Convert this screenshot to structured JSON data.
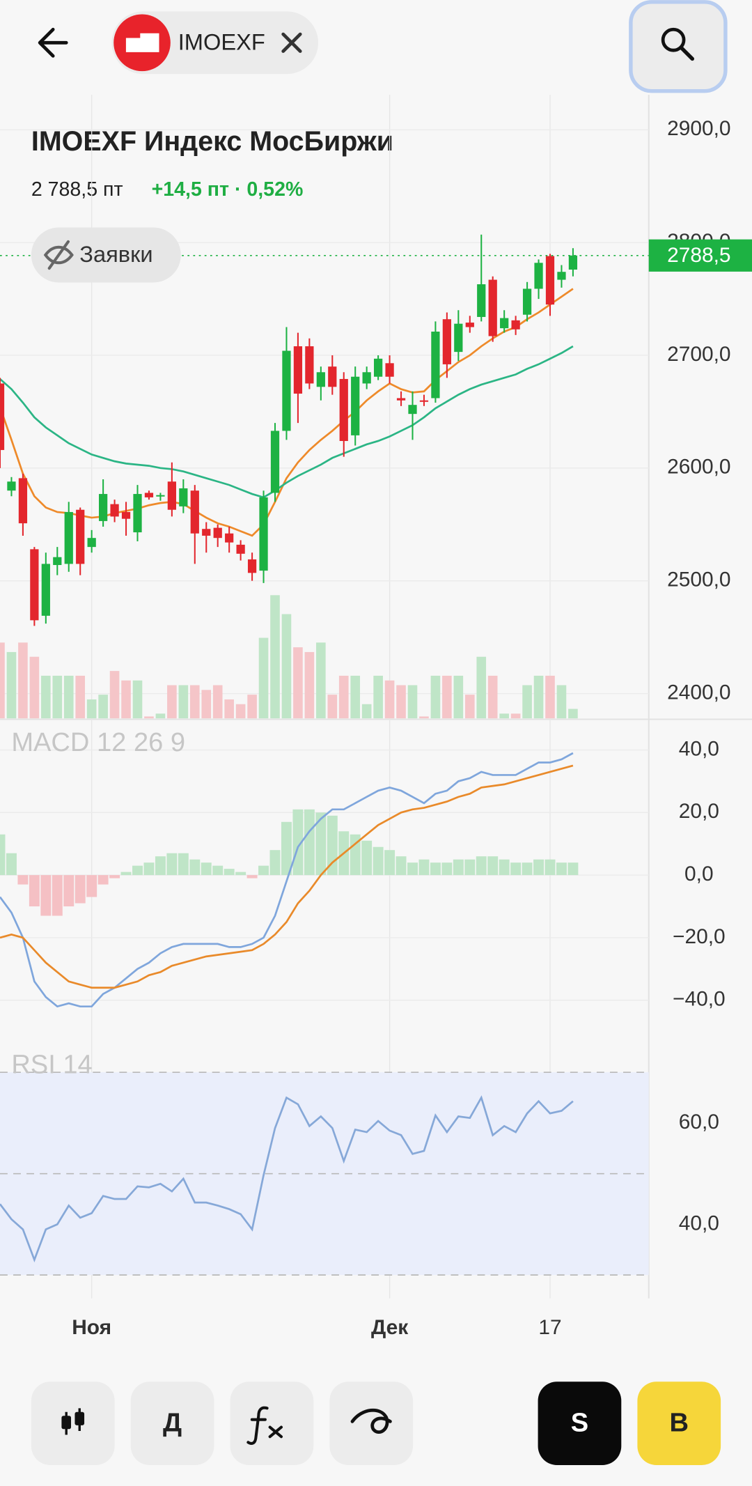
{
  "header": {
    "ticker": "IMOEXF"
  },
  "quote": {
    "title": "IMOEXF Индекс МосБиржи",
    "price": "2 788,5 пт",
    "change": "+14,5 пт · 0,52%"
  },
  "orders_toggle": "Заявки",
  "toolbar": {
    "period": "Д",
    "sell": "S",
    "buy": "B"
  },
  "chart_data": [
    {
      "type": "candlestick",
      "categories": [
        null,
        null,
        null,
        null,
        null,
        null,
        null,
        null,
        "Ноя",
        null,
        null,
        null,
        null,
        null,
        null,
        null,
        null,
        null,
        null,
        null,
        null,
        null,
        null,
        null,
        null,
        null,
        null,
        null,
        null,
        null,
        null,
        null,
        null,
        null,
        "Дек",
        null,
        null,
        null,
        null,
        null,
        null,
        null,
        null,
        null,
        null,
        null,
        null,
        null,
        "17",
        null,
        null
      ],
      "open": [
        2675,
        2580,
        2591,
        2528,
        2469,
        2514,
        2515,
        2563,
        2530,
        2553,
        2568,
        2561,
        2543,
        2578,
        2575,
        2588,
        2566,
        2580,
        2546,
        2547,
        2542,
        2532,
        2519,
        2509,
        2578,
        2633,
        2708,
        2708,
        2672,
        2690,
        2679,
        2629,
        2675,
        2681,
        2693,
        2662,
        2648,
        2660,
        2662,
        2732,
        2703,
        2729,
        2734,
        2767,
        2724,
        2731,
        2736,
        2759,
        2788,
        2767,
        2776
      ],
      "high": [
        2680,
        2592,
        2595,
        2530,
        2525,
        2530,
        2570,
        2565,
        2545,
        2590,
        2572,
        2570,
        2585,
        2580,
        2578,
        2605,
        2590,
        2585,
        2552,
        2550,
        2548,
        2536,
        2525,
        2580,
        2640,
        2725,
        2720,
        2715,
        2690,
        2700,
        2685,
        2690,
        2690,
        2700,
        2700,
        2668,
        2668,
        2665,
        2730,
        2738,
        2740,
        2735,
        2807,
        2770,
        2740,
        2735,
        2765,
        2785,
        2790,
        2780,
        2795
      ],
      "low": [
        2600,
        2575,
        2540,
        2460,
        2462,
        2505,
        2508,
        2505,
        2525,
        2548,
        2552,
        2540,
        2535,
        2572,
        2571,
        2557,
        2560,
        2515,
        2525,
        2530,
        2525,
        2518,
        2500,
        2498,
        2570,
        2625,
        2640,
        2670,
        2660,
        2665,
        2610,
        2620,
        2670,
        2678,
        2675,
        2655,
        2625,
        2655,
        2658,
        2680,
        2695,
        2720,
        2730,
        2712,
        2720,
        2718,
        2730,
        2750,
        2735,
        2760,
        2770
      ],
      "close": [
        2616,
        2588,
        2551,
        2465,
        2515,
        2521,
        2561,
        2515,
        2538,
        2577,
        2557,
        2555,
        2577,
        2574,
        2576,
        2563,
        2582,
        2542,
        2540,
        2538,
        2534,
        2524,
        2507,
        2574,
        2633,
        2704,
        2666,
        2675,
        2685,
        2672,
        2624,
        2681,
        2685,
        2697,
        2681,
        2660,
        2656,
        2659,
        2721,
        2692,
        2728,
        2725,
        2763,
        2717,
        2733,
        2723,
        2759,
        2782,
        2745,
        2774,
        2788.5
      ],
      "up_color": "#1db243",
      "down_color": "#e3262d",
      "volume": {
        "values": [
          80,
          70,
          80,
          65,
          45,
          45,
          45,
          45,
          20,
          25,
          50,
          40,
          40,
          2,
          5,
          35,
          35,
          35,
          30,
          35,
          20,
          15,
          25,
          85,
          130,
          110,
          75,
          70,
          80,
          25,
          45,
          45,
          15,
          45,
          40,
          35,
          35,
          2,
          45,
          45,
          45,
          25,
          65,
          45,
          5,
          5,
          35,
          45,
          45,
          35,
          10
        ],
        "up_color": "#bfe5c7",
        "down_color": "#f5c5c8"
      },
      "series": [
        {
          "color": "#ee8a2a",
          "values": [
            2654,
            2625,
            2595,
            2575,
            2565,
            2561,
            2560,
            2558,
            2556,
            2557,
            2560,
            2562,
            2564,
            2567,
            2569,
            2570,
            2568,
            2562,
            2556,
            2551,
            2548,
            2544,
            2540,
            2550,
            2570,
            2591,
            2605,
            2616,
            2625,
            2633,
            2642,
            2650,
            2660,
            2668,
            2675,
            2670,
            2667,
            2668,
            2678,
            2686,
            2694,
            2700,
            2708,
            2715,
            2721,
            2725,
            2732,
            2738,
            2745,
            2752,
            2759
          ]
        },
        {
          "color": "#2bb585",
          "values": [
            2679,
            2670,
            2658,
            2645,
            2636,
            2629,
            2622,
            2617,
            2612,
            2609,
            2606,
            2604,
            2603,
            2602,
            2600,
            2599,
            2597,
            2594,
            2591,
            2588,
            2585,
            2581,
            2577,
            2574,
            2580,
            2587,
            2593,
            2598,
            2603,
            2609,
            2613,
            2617,
            2621,
            2624,
            2628,
            2633,
            2638,
            2645,
            2653,
            2659,
            2665,
            2670,
            2674,
            2677,
            2680,
            2683,
            2688,
            2692,
            2697,
            2702,
            2708
          ]
        }
      ],
      "last_price": {
        "value": 2788.5,
        "label": "2788,5",
        "color": "#1db243"
      },
      "ylim": [
        2378,
        2931
      ],
      "yticks": [
        {
          "value": 2400,
          "label": "2400,0"
        },
        {
          "value": 2500,
          "label": "2500,0"
        },
        {
          "value": 2600,
          "label": "2600,0"
        },
        {
          "value": 2700,
          "label": "2700,0"
        },
        {
          "value": 2800,
          "label": "2800,0"
        },
        {
          "value": 2900,
          "label": "2900,0"
        }
      ],
      "grid": true
    },
    {
      "type": "macd",
      "title": "MACD 12 26 9",
      "series": [
        {
          "color": "#7fa6dc",
          "values": [
            -7,
            -12,
            -20,
            -34,
            -39,
            -42,
            -41,
            -42,
            -42,
            -38,
            -36,
            -33,
            -30,
            -28,
            -25,
            -23,
            -22,
            -22,
            -22,
            -22,
            -23,
            -23,
            -22,
            -20,
            -13,
            -2,
            9,
            14,
            18,
            21,
            21,
            23,
            25,
            27,
            28,
            27,
            25,
            23,
            26,
            27,
            30,
            31,
            33,
            32,
            32,
            32,
            34,
            36,
            36,
            37,
            39
          ]
        },
        {
          "color": "#e98a2a",
          "values": [
            -20,
            -19,
            -20,
            -24,
            -28,
            -31,
            -34,
            -35,
            -36,
            -36,
            -36,
            -35,
            -34,
            -32,
            -31,
            -29,
            -28,
            -27,
            -26,
            -25.5,
            -25,
            -24.5,
            -24,
            -22,
            -19,
            -15,
            -9,
            -5,
            0,
            4,
            7,
            10,
            13,
            16,
            18,
            20,
            21,
            21.5,
            22.5,
            23.5,
            25,
            26,
            28,
            28.5,
            29,
            30,
            31,
            32,
            33,
            34,
            35
          ]
        }
      ],
      "histogram": {
        "values": [
          13,
          7,
          -3,
          -10,
          -13,
          -13,
          -10,
          -9,
          -7,
          -3,
          -1,
          1,
          3,
          4,
          6,
          7,
          7,
          5,
          4,
          3,
          2,
          1,
          -1,
          3,
          8,
          17,
          21,
          21,
          20,
          19,
          14,
          13,
          11,
          9,
          8,
          6,
          4,
          5,
          4,
          4,
          5,
          5,
          6,
          6,
          5,
          4,
          4,
          5,
          5,
          4,
          4
        ],
        "up_color": "#bfe5c7",
        "down_color": "#f5c0c4"
      },
      "ylim": [
        -53.5,
        49.5
      ],
      "yticks": [
        {
          "value": 40,
          "label": "40,0"
        },
        {
          "value": 20,
          "label": "20,0"
        },
        {
          "value": 0,
          "label": "0,0"
        },
        {
          "value": -20,
          "label": "−20,0"
        },
        {
          "value": -40,
          "label": "−40,0"
        }
      ],
      "grid": true
    },
    {
      "type": "line",
      "title": "RSI 14",
      "series": [
        {
          "color": "#86a8d8",
          "values": [
            44,
            41,
            39,
            33,
            39,
            40,
            43.7,
            41.3,
            42.2,
            45.6,
            45,
            45,
            47.5,
            47.3,
            48,
            46.5,
            49,
            44.3,
            44.3,
            43.7,
            43,
            42,
            39,
            49.7,
            59,
            65,
            63.7,
            59.4,
            61.3,
            59,
            52.5,
            58.7,
            58.2,
            60.4,
            58.5,
            57.6,
            53.9,
            54.5,
            61.5,
            58.2,
            61.3,
            61,
            65,
            57.6,
            59.4,
            58.2,
            61.9,
            64.3,
            61.9,
            62.4,
            64.3
          ]
        }
      ],
      "levels": [
        30,
        50,
        70
      ],
      "band_color": "#eaeefb",
      "ylim": [
        25.4,
        75.9
      ],
      "yticks": [
        {
          "value": 60,
          "label": "60,0"
        },
        {
          "value": 40,
          "label": "40,0"
        }
      ],
      "grid": false
    }
  ]
}
